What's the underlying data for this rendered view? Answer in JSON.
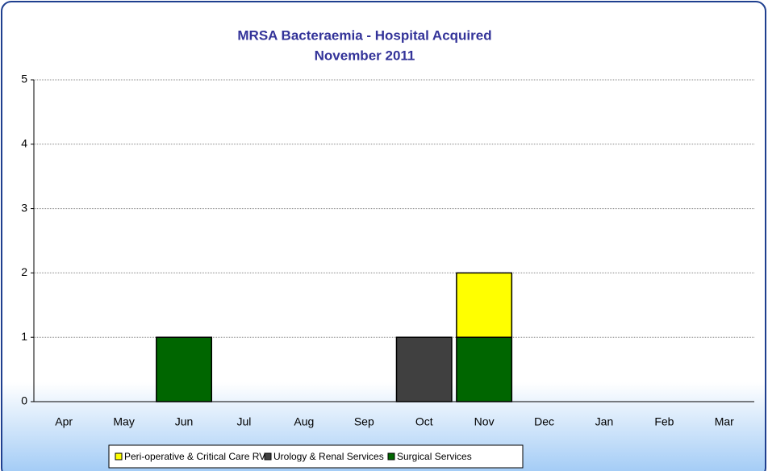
{
  "chart_data": {
    "type": "stacked_bar",
    "title": "MRSA Bacteraemia - Hospital Acquired",
    "subtitle": "November 2011",
    "categories": [
      "Apr",
      "May",
      "Jun",
      "Jul",
      "Aug",
      "Sep",
      "Oct",
      "Nov",
      "Dec",
      "Jan",
      "Feb",
      "Mar"
    ],
    "series": [
      {
        "name": "Peri-operative & Critical Care RVI",
        "color": "#ffff00",
        "values": [
          0,
          0,
          0,
          0,
          0,
          0,
          0,
          1,
          0,
          0,
          0,
          0
        ]
      },
      {
        "name": "Urology & Renal Services",
        "color": "#404040",
        "values": [
          0,
          0,
          0,
          0,
          0,
          0,
          1,
          0,
          0,
          0,
          0,
          0
        ]
      },
      {
        "name": "Surgical Services",
        "color": "#006600",
        "values": [
          0,
          0,
          1,
          0,
          0,
          0,
          0,
          1,
          0,
          0,
          0,
          0
        ]
      }
    ],
    "ylim": [
      0,
      5
    ],
    "yticks": [
      0,
      1,
      2,
      3,
      4,
      5
    ],
    "grid": true,
    "legend": "bottom"
  }
}
